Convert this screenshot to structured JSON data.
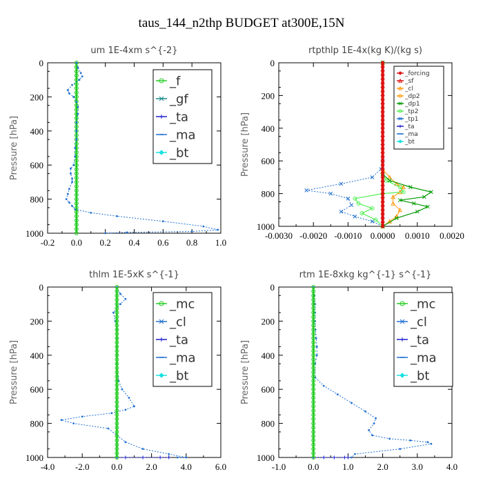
{
  "figure_title": "taus_144_n2thp  BUDGET at300E,15N",
  "y_axis_label": "Pressure  [hPa]",
  "colors": {
    "green": "#22cc22",
    "teal": "#1a8a8a",
    "blue": "#1f6fd0",
    "navy": "#1a1acc",
    "cyan": "#19e0e0",
    "red": "#dd1111",
    "orange": "#ff9a10",
    "lightgreen": "#55ee55",
    "darkgreen": "#009900"
  },
  "chart_data": [
    {
      "type": "line",
      "title": "um   1E-4xm s^{-2}",
      "ylabel": "Pressure  [hPa]",
      "xlim": [
        -0.2,
        1.0
      ],
      "ylim": [
        1000,
        0
      ],
      "xticks": [
        "-0.2",
        "0.0",
        "0.2",
        "0.4",
        "0.6",
        "0.8",
        "1.0"
      ],
      "xtick_values": [
        -0.2,
        0.0,
        0.2,
        0.4,
        0.6,
        0.8,
        1.0
      ],
      "yticks": [
        "0",
        "200",
        "400",
        "600",
        "800",
        "1000"
      ],
      "ytick_values": [
        0,
        200,
        400,
        600,
        800,
        1000
      ],
      "legend_style": "large",
      "legend": [
        {
          "label": "_f",
          "color": "green",
          "marker": "circle"
        },
        {
          "label": "_gf",
          "color": "teal",
          "marker": "x"
        },
        {
          "label": "_ta",
          "color": "navy",
          "marker": "plus"
        },
        {
          "label": "_ma",
          "color": "blue",
          "marker": "dash"
        },
        {
          "label": "_bt",
          "color": "cyan",
          "marker": "diamond"
        }
      ],
      "series": [
        {
          "color": "green",
          "width": 2.5,
          "marker": "circle",
          "x": [
            0,
            0,
            0,
            0,
            0,
            0,
            0,
            0,
            0,
            0,
            0,
            0,
            0,
            0,
            0,
            0,
            0,
            0,
            0,
            0,
            0,
            0,
            0,
            0,
            0,
            0,
            0,
            0,
            0,
            0,
            0,
            0,
            0,
            0,
            0,
            0,
            0,
            0,
            0,
            0,
            0
          ],
          "y": [
            0,
            25,
            50,
            75,
            100,
            125,
            150,
            175,
            200,
            225,
            250,
            275,
            300,
            325,
            350,
            375,
            400,
            425,
            450,
            475,
            500,
            525,
            550,
            575,
            600,
            625,
            650,
            675,
            700,
            725,
            750,
            775,
            800,
            825,
            850,
            875,
            900,
            925,
            950,
            975,
            1000
          ]
        },
        {
          "color": "blue",
          "width": 1,
          "marker": "dot",
          "dashed": true,
          "x": [
            0,
            0.01,
            0.03,
            0.04,
            0.02,
            -0.03,
            -0.06,
            -0.05,
            -0.02,
            0,
            0.01,
            0.01,
            0,
            0,
            0,
            -0.01,
            -0.01,
            -0.02,
            -0.04,
            -0.04,
            -0.03,
            -0.03,
            -0.05,
            -0.06,
            -0.07,
            -0.05,
            -0.03,
            -0.01,
            0.1,
            0.28,
            0.6,
            0.88,
            0.98,
            0.8,
            0.35,
            0.2
          ],
          "y": [
            0,
            30,
            60,
            80,
            100,
            130,
            160,
            180,
            200,
            230,
            260,
            300,
            350,
            400,
            450,
            500,
            550,
            600,
            620,
            650,
            680,
            700,
            740,
            770,
            800,
            820,
            840,
            860,
            880,
            900,
            930,
            960,
            980,
            990,
            995,
            1000
          ]
        }
      ]
    },
    {
      "type": "line",
      "title": "rtpthlp   1E-4x(kg K)/(kg s)",
      "ylabel": "Pressure  [hPa]",
      "xlim": [
        -0.003,
        0.002
      ],
      "ylim": [
        1000,
        0
      ],
      "xticks": [
        "-0.0030",
        "-0.0020",
        "-0.0010",
        "0.0000",
        "0.0010",
        "0.0020"
      ],
      "xtick_values": [
        -0.003,
        -0.002,
        -0.001,
        0.0,
        0.001,
        0.002
      ],
      "yticks": [
        "0",
        "200",
        "400",
        "600",
        "800",
        "1000"
      ],
      "ytick_values": [
        0,
        200,
        400,
        600,
        800,
        1000
      ],
      "legend_style": "small",
      "legend": [
        {
          "label": "_forcing",
          "color": "red",
          "marker": "diamond"
        },
        {
          "label": "_sf",
          "color": "red",
          "marker": "triangle"
        },
        {
          "label": "_cl",
          "color": "orange",
          "marker": "triangle"
        },
        {
          "label": "_dp2",
          "color": "orange",
          "marker": "circle"
        },
        {
          "label": "_dp1",
          "color": "darkgreen",
          "marker": "x"
        },
        {
          "label": "_tp2",
          "color": "lightgreen",
          "marker": "circle"
        },
        {
          "label": "_tp1",
          "color": "blue",
          "marker": "x"
        },
        {
          "label": "_ta",
          "color": "navy",
          "marker": "plus"
        },
        {
          "label": "_ma",
          "color": "blue",
          "marker": "dash"
        },
        {
          "label": "_bt",
          "color": "cyan",
          "marker": "diamond"
        }
      ],
      "series": [
        {
          "color": "blue",
          "width": 1,
          "marker": "x",
          "dashed": true,
          "x": [
            0,
            0,
            -5e-05,
            -0.0003,
            -0.0012,
            -0.0022,
            -0.0015,
            -0.001,
            -0.0009,
            -0.0012,
            -0.0008,
            -0.0003,
            0
          ],
          "y": [
            0,
            600,
            650,
            700,
            740,
            780,
            800,
            830,
            870,
            910,
            940,
            970,
            1000
          ]
        },
        {
          "color": "orange",
          "width": 1,
          "marker": "triangle",
          "x": [
            0,
            0,
            0.0002,
            0.0004,
            0.0006,
            0.0005,
            0.0003,
            0.0003,
            0.0005,
            0.0004,
            0.0002,
            0
          ],
          "y": [
            0,
            650,
            700,
            740,
            760,
            790,
            820,
            860,
            900,
            940,
            970,
            1000
          ]
        },
        {
          "color": "lightgreen",
          "width": 1.2,
          "marker": "circle",
          "x": [
            0,
            0,
            0.0001,
            0.0005,
            0.0006,
            0,
            -0.0008,
            -0.0007,
            -0.0003,
            -0.0006,
            -0.0002,
            0
          ],
          "y": [
            0,
            680,
            720,
            760,
            790,
            800,
            830,
            860,
            890,
            920,
            960,
            1000
          ]
        },
        {
          "color": "darkgreen",
          "width": 1.2,
          "marker": "x",
          "x": [
            0,
            0,
            0.0002,
            0.0008,
            0.0014,
            0.0012,
            0.0005,
            0.0009,
            0.0013,
            0.001,
            0.0004,
            0
          ],
          "y": [
            0,
            680,
            720,
            760,
            790,
            820,
            840,
            860,
            880,
            910,
            950,
            1000
          ]
        },
        {
          "color": "red",
          "width": 4,
          "marker": "diamond",
          "x": [
            0,
            0,
            0,
            0,
            0,
            0,
            0,
            0,
            0,
            0,
            0,
            0,
            0,
            0,
            0,
            0,
            0,
            0,
            0,
            0,
            0,
            0,
            0,
            0,
            0,
            0,
            0,
            0,
            0,
            0,
            0,
            0,
            0,
            0,
            0,
            0,
            0,
            0,
            0,
            0,
            0
          ],
          "y": [
            0,
            25,
            50,
            75,
            100,
            125,
            150,
            175,
            200,
            225,
            250,
            275,
            300,
            325,
            350,
            375,
            400,
            425,
            450,
            475,
            500,
            525,
            550,
            575,
            600,
            625,
            650,
            675,
            700,
            725,
            750,
            775,
            800,
            825,
            850,
            875,
            900,
            925,
            950,
            975,
            1000
          ]
        }
      ]
    },
    {
      "type": "line",
      "title": "thlm   1E-5xK s^{-1}",
      "ylabel": "Pressure  [hPa]",
      "xlim": [
        -4.0,
        6.0
      ],
      "ylim": [
        1000,
        0
      ],
      "xticks": [
        "-4.0",
        "-2.0",
        "0.0",
        "2.0",
        "4.0",
        "6.0"
      ],
      "xtick_values": [
        -4,
        -2,
        0,
        2,
        4,
        6
      ],
      "yticks": [
        "0",
        "200",
        "400",
        "600",
        "800",
        "1000"
      ],
      "ytick_values": [
        0,
        200,
        400,
        600,
        800,
        1000
      ],
      "legend_style": "large",
      "legend": [
        {
          "label": "_mc",
          "color": "green",
          "marker": "circle"
        },
        {
          "label": "_cl",
          "color": "blue",
          "marker": "x"
        },
        {
          "label": "_ta",
          "color": "navy",
          "marker": "plus"
        },
        {
          "label": "_ma",
          "color": "blue",
          "marker": "dash"
        },
        {
          "label": "_bt",
          "color": "cyan",
          "marker": "diamond"
        }
      ],
      "series": [
        {
          "color": "blue",
          "width": 1,
          "marker": "dot",
          "dashed": true,
          "x": [
            0,
            0.2,
            0.5,
            0.2,
            -0.2,
            -0.1,
            0,
            0,
            0,
            0,
            0,
            0.1,
            0.3,
            0.7,
            1.0,
            0.5,
            -0.3,
            -2.0,
            -3.2,
            -2.5,
            -0.5,
            0,
            0.5,
            1.5,
            3.0,
            4.0,
            3.5
          ],
          "y": [
            0,
            40,
            70,
            100,
            150,
            200,
            250,
            300,
            350,
            400,
            450,
            550,
            600,
            650,
            700,
            720,
            740,
            760,
            780,
            800,
            830,
            870,
            910,
            950,
            980,
            1000,
            1000
          ]
        },
        {
          "color": "navy",
          "width": 1,
          "marker": "plus",
          "dashed": true,
          "x": [
            0,
            0.5,
            1.5,
            2.5,
            3.0
          ],
          "y": [
            1000,
            1000,
            1000,
            1000,
            1000
          ]
        },
        {
          "color": "green",
          "width": 2.5,
          "marker": "circle",
          "x": [
            0,
            0,
            0,
            0,
            0,
            0,
            0,
            0,
            0,
            0,
            0,
            0,
            0,
            0,
            0,
            0,
            0,
            0,
            0,
            0,
            0,
            0,
            0,
            0,
            0,
            0,
            0,
            0,
            0,
            0,
            0,
            0,
            0,
            0,
            0,
            0,
            0,
            0,
            0,
            0,
            0
          ],
          "y": [
            0,
            25,
            50,
            75,
            100,
            125,
            150,
            175,
            200,
            225,
            250,
            275,
            300,
            325,
            350,
            375,
            400,
            425,
            450,
            475,
            500,
            525,
            550,
            575,
            600,
            625,
            650,
            675,
            700,
            725,
            750,
            775,
            800,
            825,
            850,
            875,
            900,
            925,
            950,
            975,
            1000
          ]
        }
      ]
    },
    {
      "type": "line",
      "title": "rtm   1E-8xkg kg^{-1} s^{-1}",
      "ylabel": "Pressure  [hPa]",
      "xlim": [
        -1.0,
        4.0
      ],
      "ylim": [
        1000,
        0
      ],
      "xticks": [
        "-1.0",
        "0.0",
        "1.0",
        "2.0",
        "3.0",
        "4.0"
      ],
      "xtick_values": [
        -1,
        0,
        1,
        2,
        3,
        4
      ],
      "yticks": [
        "0",
        "200",
        "400",
        "600",
        "800",
        "1000"
      ],
      "ytick_values": [
        0,
        200,
        400,
        600,
        800,
        1000
      ],
      "legend_style": "large",
      "legend": [
        {
          "label": "_mc",
          "color": "green",
          "marker": "circle"
        },
        {
          "label": "_cl",
          "color": "blue",
          "marker": "x"
        },
        {
          "label": "_ta",
          "color": "navy",
          "marker": "plus"
        },
        {
          "label": "_ma",
          "color": "blue",
          "marker": "dash"
        },
        {
          "label": "_bt",
          "color": "cyan",
          "marker": "diamond"
        }
      ],
      "series": [
        {
          "color": "blue",
          "width": 1,
          "marker": "dot",
          "dashed": true,
          "x": [
            0,
            0.02,
            0.05,
            0.05,
            0.05,
            0.06,
            0.08,
            0.1,
            0.1,
            0.05,
            0.05,
            0.3,
            0.7,
            1.1,
            1.5,
            1.8,
            1.75,
            1.6,
            1.7,
            2.2,
            2.8,
            3.3,
            3.4,
            2.5,
            1.2,
            1.1
          ],
          "y": [
            0,
            50,
            100,
            150,
            200,
            250,
            300,
            350,
            400,
            450,
            530,
            580,
            630,
            680,
            730,
            770,
            800,
            840,
            870,
            890,
            900,
            910,
            920,
            950,
            980,
            1000
          ]
        },
        {
          "color": "navy",
          "width": 1,
          "marker": "plus",
          "dashed": true,
          "x": [
            0,
            0.3,
            0.6,
            0.9,
            1.0
          ],
          "y": [
            1000,
            1000,
            1000,
            1000,
            1000
          ]
        },
        {
          "color": "green",
          "width": 2.5,
          "marker": "circle",
          "x": [
            0,
            0,
            0,
            0,
            0,
            0,
            0,
            0,
            0,
            0,
            0,
            0,
            0,
            0,
            0,
            0,
            0,
            0,
            0,
            0,
            0,
            0,
            0,
            0,
            0,
            0,
            0,
            0,
            0,
            0,
            0,
            0,
            0,
            0,
            0,
            0,
            0,
            0,
            0,
            0,
            0
          ],
          "y": [
            0,
            25,
            50,
            75,
            100,
            125,
            150,
            175,
            200,
            225,
            250,
            275,
            300,
            325,
            350,
            375,
            400,
            425,
            450,
            475,
            500,
            525,
            550,
            575,
            600,
            625,
            650,
            675,
            700,
            725,
            750,
            775,
            800,
            825,
            850,
            875,
            900,
            925,
            950,
            975,
            1000
          ]
        }
      ]
    }
  ]
}
